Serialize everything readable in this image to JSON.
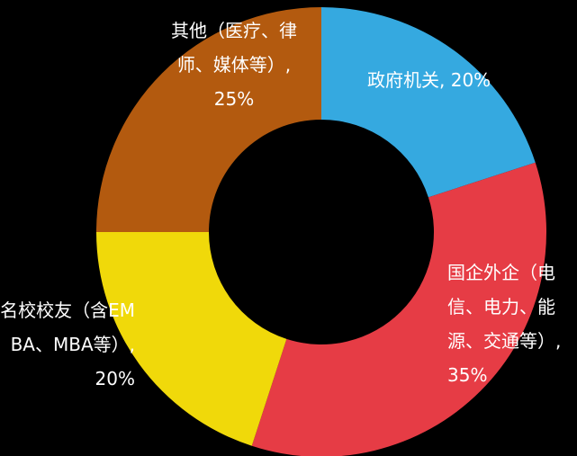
{
  "chart_data": {
    "type": "donut",
    "categories": [
      "政府机关,",
      "国企外企（电信、电力、能源、交通等）,",
      "名校校友（含EMBA、MBA等）,",
      "其他（医疗、律师、媒体等）,"
    ],
    "values": [
      20,
      35,
      20,
      25
    ],
    "value_labels": [
      "20%",
      "35%",
      "20%",
      "25%"
    ],
    "colors": [
      "#35a9e0",
      "#e63c45",
      "#f0d90a",
      "#b35a0f"
    ]
  }
}
